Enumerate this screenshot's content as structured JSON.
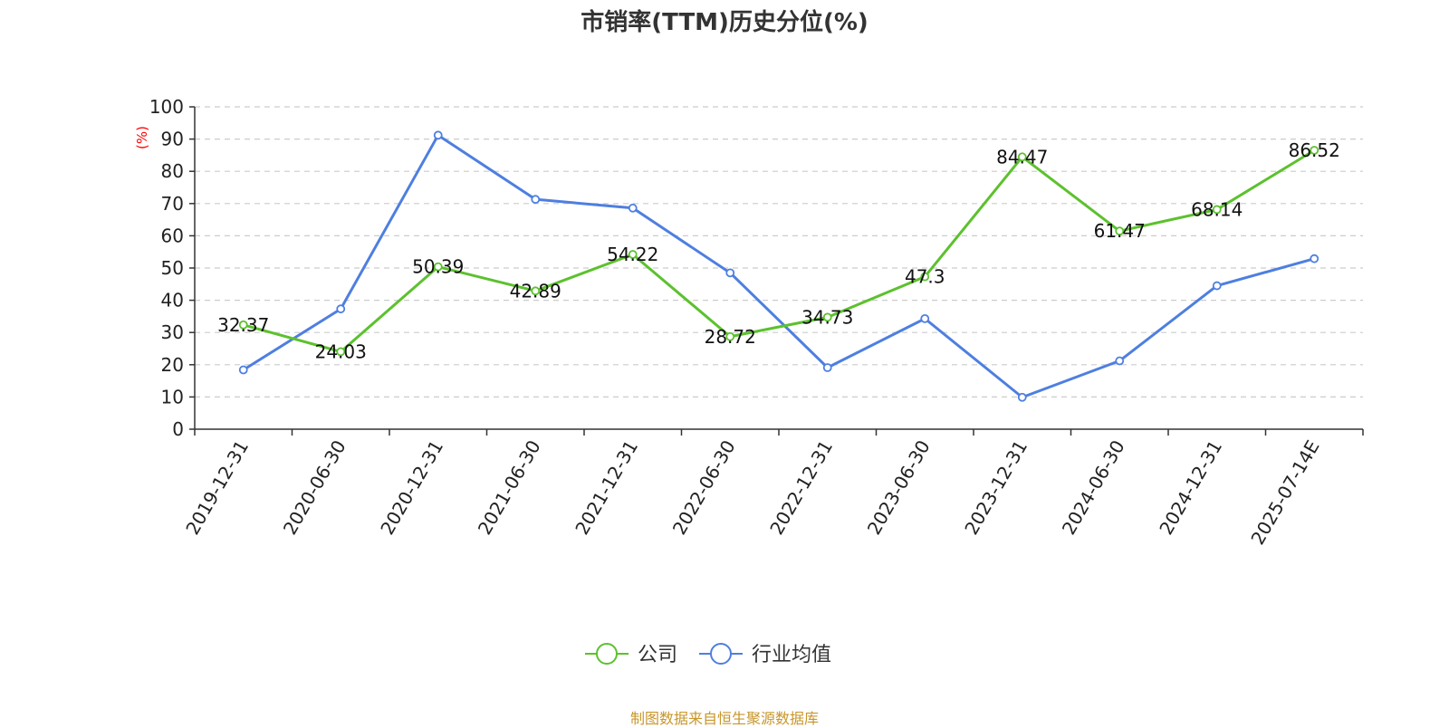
{
  "chart_data": {
    "type": "line",
    "title": "市销率(TTM)历史分位(%)",
    "ylabel": "(%)",
    "ylim": [
      0,
      100
    ],
    "yticks": [
      0,
      10,
      20,
      30,
      40,
      50,
      60,
      70,
      80,
      90,
      100
    ],
    "grid": true,
    "legend_position": "bottom",
    "categories": [
      "2019-12-31",
      "2020-06-30",
      "2020-12-31",
      "2021-06-30",
      "2021-12-31",
      "2022-06-30",
      "2022-12-31",
      "2023-06-30",
      "2023-12-31",
      "2024-06-30",
      "2024-12-31",
      "2025-07-14E"
    ],
    "series": [
      {
        "name": "公司",
        "color": "#5cc12e",
        "show_labels": true,
        "values": [
          32.37,
          24.03,
          50.39,
          42.89,
          54.22,
          28.72,
          34.73,
          47.3,
          84.47,
          61.47,
          68.14,
          86.52
        ]
      },
      {
        "name": "行业均值",
        "color": "#4e7fe0",
        "show_labels": false,
        "values": [
          18.4,
          37.3,
          91.2,
          71.3,
          68.6,
          48.5,
          19.1,
          34.3,
          9.9,
          21.2,
          44.5,
          52.9
        ]
      }
    ]
  },
  "footer": "制图数据来自恒生聚源数据库"
}
